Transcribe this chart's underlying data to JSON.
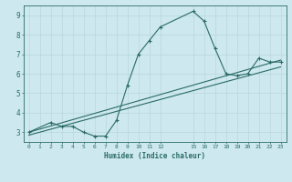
{
  "xlabel": "Humidex (Indice chaleur)",
  "bg_color": "#cde8ee",
  "grid_color": "#b8d8de",
  "line_color": "#2a6b64",
  "xlim": [
    -0.5,
    23.5
  ],
  "ylim": [
    2.5,
    9.5
  ],
  "xticks": [
    0,
    1,
    2,
    3,
    4,
    5,
    6,
    7,
    8,
    9,
    10,
    11,
    12,
    15,
    16,
    17,
    18,
    19,
    20,
    21,
    22,
    23
  ],
  "yticks": [
    3,
    4,
    5,
    6,
    7,
    8,
    9
  ],
  "line1_x": [
    0,
    2,
    3,
    4,
    5,
    6,
    7,
    8,
    9,
    10,
    11,
    12,
    15,
    16,
    17,
    18,
    19,
    20,
    21,
    22,
    23
  ],
  "line1_y": [
    3.0,
    3.5,
    3.3,
    3.3,
    3.0,
    2.8,
    2.8,
    3.6,
    5.4,
    7.0,
    7.7,
    8.4,
    9.2,
    8.7,
    7.3,
    6.0,
    5.9,
    6.0,
    6.8,
    6.6,
    6.6
  ],
  "line2_x": [
    0,
    23
  ],
  "line2_y": [
    3.0,
    6.7
  ],
  "line3_x": [
    0,
    23
  ],
  "line3_y": [
    2.85,
    6.35
  ]
}
